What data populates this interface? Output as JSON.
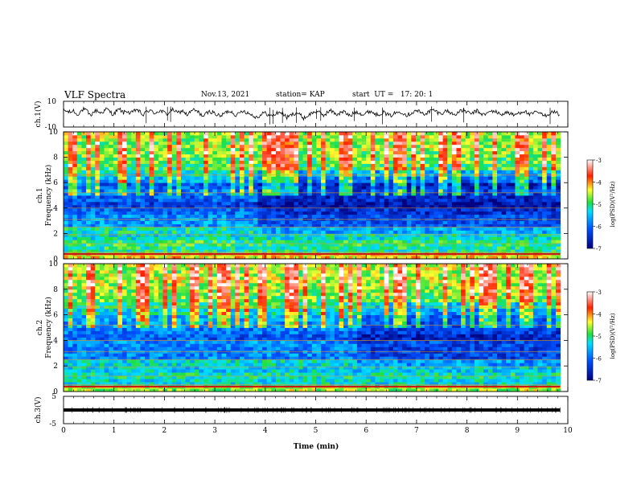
{
  "header": {
    "title": "VLF Spectra",
    "date": "Nov.13, 2021",
    "station": "station= KAP",
    "start": "start  UT =   17: 20: 1"
  },
  "chart_data": [
    {
      "type": "line",
      "ylabel": "ch.1(V)",
      "ylim": [
        -10,
        10
      ],
      "yticks": [
        "10",
        "-10"
      ],
      "xlim": [
        0,
        10
      ],
      "series": [
        {
          "values": [
            3.2,
            2.1,
            1.4,
            2.8,
            -0.6,
            1.9,
            3.8,
            2.4,
            -1.2,
            1.6,
            3.0,
            0.9,
            2.2,
            4.1,
            1.7,
            -0.4,
            2.9,
            3.4,
            1.1,
            2.6,
            0.3,
            2.0,
            3.9,
            1.2,
            -0.9,
            2.4,
            3.1,
            0.6,
            1.8,
            2.7,
            1.5,
            -0.2,
            2.3,
            3.6,
            0.8,
            1.9,
            2.5,
            -0.8,
            1.6,
            3.2,
            2.2,
            0.4,
            -1.8,
            0.9,
            2.1,
            1.3,
            -0.5,
            -1.7,
            0.2,
            1.8,
            2.6,
            0.7,
            -1.1,
            1.5,
            2.9,
            1.2,
            0.1,
            -1.4,
            -2.3,
            -0.8,
            1.0,
            0.3,
            -1.6,
            -0.9,
            0.8,
            1.7,
            -0.3,
            -2.6,
            -1.2,
            0.4,
            1.2,
            -0.7,
            -3.1,
            -1.8,
            0.1,
            1.4,
            2.3,
            0.6,
            -0.9,
            1.1,
            2.8,
            1.5,
            -0.2,
            0.9,
            2.0,
            0.2,
            -1.5,
            0.7,
            1.9,
            0.8,
            -0.6,
            1.3,
            2.4,
            1.0,
            -0.4,
            0.5,
            1.6,
            -0.2,
            -1.3,
            0.3,
            1.2,
            2.2,
            0.9,
            -0.8,
            0.6,
            1.8,
            2.9,
            1.4,
            0.1,
            1.0,
            2.3,
            3.3,
            1.6,
            0.4,
            1.5,
            2.8,
            1.1,
            -0.3,
            0.8,
            2.0,
            3.1,
            1.7,
            0.2,
            1.2,
            2.5,
            0.9,
            -0.5,
            0.6,
            1.9,
            2.7,
            1.3,
            -0.2,
            0.4,
            1.5,
            0.5,
            -1.0,
            0.3,
            1.4,
            2.6,
            1.1,
            -0.6,
            0.7,
            1.8,
            0.4,
            -1.3,
            -0.5,
            0.9,
            2.0,
            0.8,
            -0.9
          ]
        }
      ]
    },
    {
      "type": "heatmap",
      "ylabel": "ch.1  Frequency (kHz)",
      "ylim": [
        0,
        10
      ],
      "yticks": [
        "0",
        "2",
        "4",
        "6",
        "8",
        "10"
      ],
      "xlim": [
        0,
        10
      ],
      "time_range_min": [
        0,
        9.85
      ],
      "mean_log_psd_by_freq_band": {
        "freq_khz": [
          0.25,
          0.75,
          1.25,
          1.75,
          2.25,
          2.75,
          3.25,
          3.75,
          4.25,
          4.75,
          5.25,
          5.75,
          6.25,
          6.75,
          7.25,
          7.75,
          8.25,
          8.75,
          9.25,
          9.75
        ],
        "log_psd": [
          -4.3,
          -5.1,
          -5.0,
          -5.3,
          -5.2,
          -5.7,
          -5.8,
          -6.0,
          -6.3,
          -6.1,
          -5.9,
          -6.1,
          -5.6,
          -5.2,
          -4.9,
          -4.8,
          -4.7,
          -4.6,
          -4.7,
          -4.6
        ]
      },
      "colorbar": {
        "label": "log(PSD)(V²/Hz)",
        "range": [
          -7,
          -3
        ],
        "ticks": [
          "-3",
          "-4",
          "-5",
          "-6",
          "-7"
        ]
      }
    },
    {
      "type": "heatmap",
      "ylabel": "ch.2  Frequency (kHz)",
      "ylim": [
        0,
        10
      ],
      "yticks": [
        "0",
        "2",
        "4",
        "6",
        "8",
        "10"
      ],
      "xlim": [
        0,
        10
      ],
      "time_range_min": [
        0,
        9.85
      ],
      "mean_log_psd_by_freq_band": {
        "freq_khz": [
          0.25,
          0.75,
          1.25,
          1.75,
          2.25,
          2.75,
          3.25,
          3.75,
          4.25,
          4.75,
          5.25,
          5.75,
          6.25,
          6.75,
          7.25,
          7.75,
          8.25,
          8.75,
          9.25,
          9.75
        ],
        "log_psd": [
          -4.6,
          -5.3,
          -5.2,
          -5.4,
          -5.3,
          -5.8,
          -5.9,
          -5.8,
          -6.1,
          -5.9,
          -5.7,
          -5.6,
          -5.3,
          -5.0,
          -4.8,
          -4.7,
          -4.6,
          -4.5,
          -4.6,
          -4.5
        ]
      },
      "colorbar": {
        "label": "log(PSD)(V²/Hz)",
        "range": [
          -7,
          -3
        ],
        "ticks": [
          "-3",
          "-4",
          "-5",
          "-6",
          "-7"
        ]
      }
    },
    {
      "type": "line",
      "ylabel": "ch.3(V)",
      "ylim": [
        -5,
        5
      ],
      "yticks": [
        "5",
        "0",
        "-5"
      ],
      "xlim": [
        0,
        10
      ],
      "xlabel": "Time (min)",
      "xticks": [
        "0",
        "1",
        "2",
        "3",
        "4",
        "5",
        "6",
        "7",
        "8",
        "9",
        "10"
      ],
      "series": [
        {
          "level_v": 0,
          "amplitude_v": 0.6
        }
      ]
    }
  ]
}
